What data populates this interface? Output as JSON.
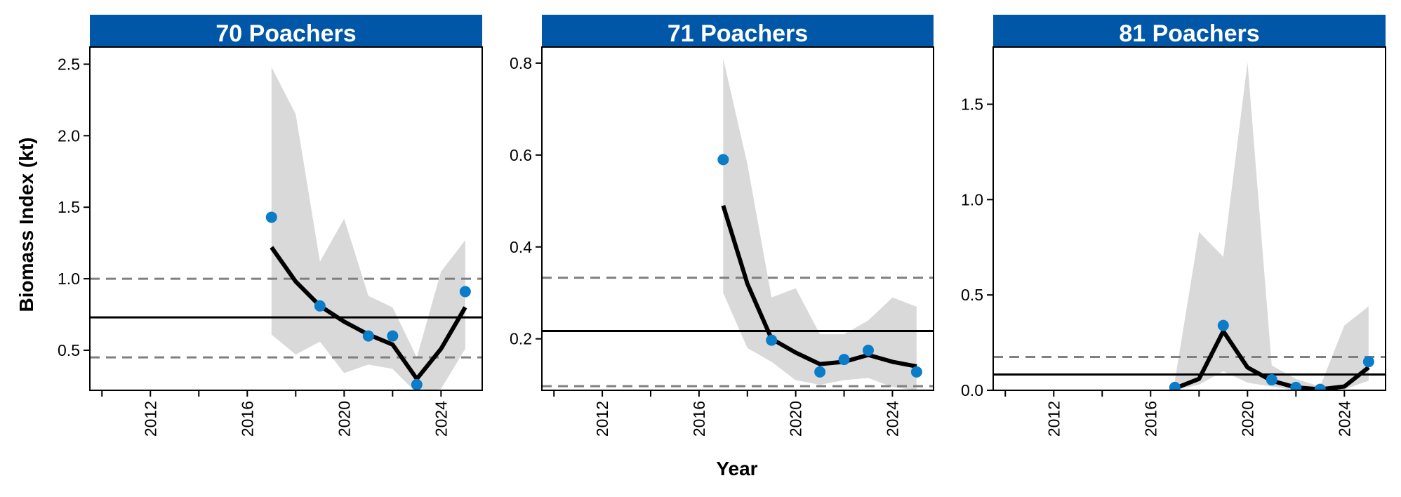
{
  "figure": {
    "ylabel": "Biomass Index (kt)",
    "xlabel": "Year"
  },
  "colors": {
    "strip": "#0057A8",
    "points": "#0B7CC8",
    "ribbon": "#D9D9D9",
    "line": "#000000",
    "reference": "#808080"
  },
  "chart_data": [
    {
      "type": "line",
      "title": "70 Poachers",
      "xlim": [
        2009.5,
        2025.7
      ],
      "ylim": [
        0.22,
        2.62
      ],
      "yticks": [
        0.5,
        1.0,
        1.5,
        2.0,
        2.5
      ],
      "ytick_labels": [
        "0.5",
        "1.0",
        "1.5",
        "2.0",
        "2.5"
      ],
      "xticks": [
        2012,
        2016,
        2020,
        2024
      ],
      "xtick_labels": [
        "2012",
        "2016",
        "2020",
        "2024"
      ],
      "x_minor_ticks": [
        2010,
        2014,
        2018,
        2022
      ],
      "grid": false,
      "reference_lines": {
        "mean": 0.73,
        "lower": 0.45,
        "upper": 1.0
      },
      "fit": {
        "x": [
          2017,
          2018,
          2019,
          2020,
          2021,
          2022,
          2023,
          2024,
          2025
        ],
        "y": [
          1.22,
          0.98,
          0.81,
          0.7,
          0.61,
          0.54,
          0.3,
          0.51,
          0.8
        ]
      },
      "ribbon": {
        "x": [
          2017,
          2018,
          2019,
          2020,
          2021,
          2022,
          2023,
          2024,
          2025
        ],
        "lower": [
          0.61,
          0.47,
          0.56,
          0.34,
          0.4,
          0.37,
          0.2,
          0.23,
          0.51
        ],
        "upper": [
          2.48,
          2.15,
          1.12,
          1.42,
          0.88,
          0.8,
          0.45,
          1.05,
          1.27
        ]
      },
      "observed": {
        "x": [
          2017,
          2019,
          2021,
          2022,
          2023,
          2025
        ],
        "y": [
          1.43,
          0.81,
          0.6,
          0.6,
          0.26,
          0.91
        ]
      }
    },
    {
      "type": "line",
      "title": "71 Poachers",
      "xlim": [
        2009.5,
        2025.7
      ],
      "ylim": [
        0.088,
        0.835
      ],
      "yticks": [
        0.2,
        0.4,
        0.6,
        0.8
      ],
      "ytick_labels": [
        "0.2",
        "0.4",
        "0.6",
        "0.8"
      ],
      "xticks": [
        2012,
        2016,
        2020,
        2024
      ],
      "xtick_labels": [
        "2012",
        "2016",
        "2020",
        "2024"
      ],
      "x_minor_ticks": [
        2010,
        2014,
        2018,
        2022
      ],
      "grid": false,
      "reference_lines": {
        "mean": 0.217,
        "lower": 0.097,
        "upper": 0.333
      },
      "fit": {
        "x": [
          2017,
          2018,
          2019,
          2020,
          2021,
          2022,
          2023,
          2024,
          2025
        ],
        "y": [
          0.49,
          0.32,
          0.2,
          0.17,
          0.145,
          0.15,
          0.165,
          0.15,
          0.14
        ]
      },
      "ribbon": {
        "x": [
          2017,
          2018,
          2019,
          2020,
          2021,
          2022,
          2023,
          2024,
          2025
        ],
        "lower": [
          0.3,
          0.18,
          0.15,
          0.11,
          0.1,
          0.11,
          0.115,
          0.095,
          0.088
        ],
        "upper": [
          0.81,
          0.58,
          0.29,
          0.31,
          0.21,
          0.21,
          0.24,
          0.29,
          0.27
        ]
      },
      "observed": {
        "x": [
          2017,
          2019,
          2021,
          2022,
          2023,
          2025
        ],
        "y": [
          0.59,
          0.197,
          0.128,
          0.155,
          0.175,
          0.128
        ]
      }
    },
    {
      "type": "line",
      "title": "81 Poachers",
      "xlim": [
        2009.5,
        2025.7
      ],
      "ylim": [
        0.0,
        1.8
      ],
      "yticks": [
        0.0,
        0.5,
        1.0,
        1.5
      ],
      "ytick_labels": [
        "0.0",
        "0.5",
        "1.0",
        "1.5"
      ],
      "xticks": [
        2012,
        2016,
        2020,
        2024
      ],
      "xtick_labels": [
        "2012",
        "2016",
        "2020",
        "2024"
      ],
      "x_minor_ticks": [
        2010,
        2014,
        2018,
        2022
      ],
      "grid": false,
      "reference_lines": {
        "mean": 0.083,
        "lower": null,
        "upper": 0.175
      },
      "fit": {
        "x": [
          2017,
          2018,
          2019,
          2020,
          2021,
          2022,
          2023,
          2024,
          2025
        ],
        "y": [
          0.01,
          0.06,
          0.31,
          0.12,
          0.05,
          0.015,
          0.005,
          0.02,
          0.12
        ]
      },
      "ribbon": {
        "x": [
          2017,
          2018,
          2019,
          2020,
          2021,
          2022,
          2023,
          2024,
          2025
        ],
        "lower": [
          0.0,
          0.03,
          0.1,
          0.04,
          0.02,
          0.0,
          0.0,
          0.005,
          0.05
        ],
        "upper": [
          0.05,
          0.83,
          0.7,
          1.72,
          0.13,
          0.06,
          0.02,
          0.34,
          0.44
        ]
      },
      "observed": {
        "x": [
          2017,
          2019,
          2021,
          2022,
          2023,
          2025
        ],
        "y": [
          0.015,
          0.34,
          0.055,
          0.015,
          0.005,
          0.15
        ]
      }
    }
  ]
}
